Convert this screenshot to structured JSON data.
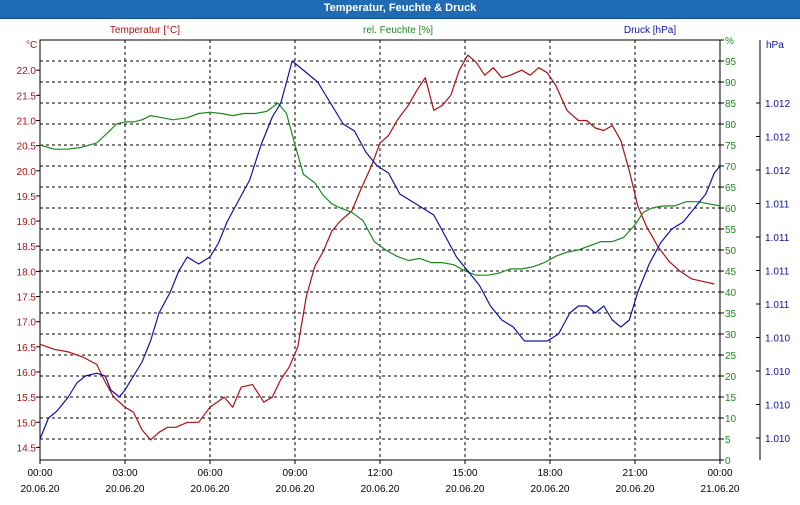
{
  "window": {
    "title": "Temperatur, Feuchte & Druck"
  },
  "colors": {
    "temperature": "#b01010",
    "humidity": "#1a8a1a",
    "pressure": "#1010a8",
    "grid": "#000000",
    "title_bar": "#1f6cb4"
  },
  "chart_data": {
    "type": "line",
    "title": "Temperatur, Feuchte & Druck",
    "grid": true,
    "x_axis": {
      "ticks": [
        {
          "time": "00:00",
          "date": "20.06.20"
        },
        {
          "time": "03:00",
          "date": "20.06.20"
        },
        {
          "time": "06:00",
          "date": "20.06.20"
        },
        {
          "time": "09:00",
          "date": "20.06.20"
        },
        {
          "time": "12:00",
          "date": "20.06.20"
        },
        {
          "time": "15:00",
          "date": "20.06.20"
        },
        {
          "time": "18:00",
          "date": "20.06.20"
        },
        {
          "time": "21:00",
          "date": "20.06.20"
        },
        {
          "time": "00:00",
          "date": "21.06.20"
        }
      ],
      "range_hours": [
        0,
        24
      ]
    },
    "axes": {
      "temperature": {
        "unit": "°C",
        "label": "Temperatur [°C]",
        "range": [
          14.25,
          22.6
        ],
        "ticks": [
          "14.5",
          "15.0",
          "15.5",
          "16.0",
          "16.5",
          "17.0",
          "17.5",
          "18.0",
          "18.5",
          "19.0",
          "19.5",
          "20.0",
          "20.5",
          "21.0",
          "21.5",
          "22.0"
        ]
      },
      "humidity": {
        "unit": "%",
        "label": "rel. Feuchte [%]",
        "range": [
          0,
          100
        ],
        "ticks": [
          "0",
          "5",
          "10",
          "15",
          "20",
          "25",
          "30",
          "35",
          "40",
          "45",
          "50",
          "55",
          "60",
          "65",
          "70",
          "75",
          "80",
          "85",
          "90",
          "95",
          "%"
        ]
      },
      "pressure": {
        "unit": "hPa",
        "label": "Druck [hPa]",
        "range": [
          1009.5,
          1012.5
        ],
        "ticks": [
          "1.010",
          "1.010",
          "1.010",
          "1.010",
          "1.011",
          "1.011",
          "1.011",
          "1.011",
          "1.012",
          "1.012",
          "1.012"
        ]
      }
    },
    "series": [
      {
        "name": "Temperatur [°C]",
        "axis": "temperature",
        "points": [
          [
            0,
            16.55
          ],
          [
            0.5,
            16.45
          ],
          [
            1,
            16.4
          ],
          [
            1.5,
            16.3
          ],
          [
            2,
            16.15
          ],
          [
            2.3,
            15.8
          ],
          [
            2.6,
            15.5
          ],
          [
            3,
            15.3
          ],
          [
            3.3,
            15.2
          ],
          [
            3.6,
            14.85
          ],
          [
            3.9,
            14.65
          ],
          [
            4.2,
            14.8
          ],
          [
            4.5,
            14.9
          ],
          [
            4.8,
            14.9
          ],
          [
            5.2,
            15.0
          ],
          [
            5.6,
            15.0
          ],
          [
            6,
            15.3
          ],
          [
            6.5,
            15.5
          ],
          [
            6.8,
            15.3
          ],
          [
            7.1,
            15.7
          ],
          [
            7.5,
            15.75
          ],
          [
            7.9,
            15.4
          ],
          [
            8.2,
            15.5
          ],
          [
            8.5,
            15.85
          ],
          [
            8.8,
            16.1
          ],
          [
            9.1,
            16.5
          ],
          [
            9.4,
            17.5
          ],
          [
            9.7,
            18.1
          ],
          [
            10,
            18.4
          ],
          [
            10.3,
            18.8
          ],
          [
            10.6,
            19.0
          ],
          [
            11,
            19.2
          ],
          [
            11.3,
            19.6
          ],
          [
            11.7,
            20.1
          ],
          [
            12,
            20.55
          ],
          [
            12.3,
            20.7
          ],
          [
            12.6,
            21.0
          ],
          [
            13,
            21.3
          ],
          [
            13.3,
            21.6
          ],
          [
            13.6,
            21.85
          ],
          [
            13.9,
            21.2
          ],
          [
            14.2,
            21.3
          ],
          [
            14.5,
            21.5
          ],
          [
            14.8,
            22.0
          ],
          [
            15.1,
            22.3
          ],
          [
            15.4,
            22.15
          ],
          [
            15.7,
            21.9
          ],
          [
            16,
            22.05
          ],
          [
            16.3,
            21.85
          ],
          [
            16.6,
            21.9
          ],
          [
            17,
            22.0
          ],
          [
            17.3,
            21.9
          ],
          [
            17.6,
            22.05
          ],
          [
            17.9,
            21.95
          ],
          [
            18.2,
            21.7
          ],
          [
            18.6,
            21.2
          ],
          [
            19,
            21.0
          ],
          [
            19.3,
            21.0
          ],
          [
            19.6,
            20.85
          ],
          [
            19.9,
            20.8
          ],
          [
            20.2,
            20.9
          ],
          [
            20.5,
            20.6
          ],
          [
            20.8,
            20.0
          ],
          [
            21.1,
            19.3
          ],
          [
            21.4,
            18.9
          ],
          [
            21.8,
            18.5
          ],
          [
            22.2,
            18.2
          ],
          [
            22.6,
            18.0
          ],
          [
            23,
            17.85
          ],
          [
            23.4,
            17.8
          ],
          [
            23.8,
            17.75
          ]
        ]
      },
      {
        "name": "rel. Feuchte [%]",
        "axis": "humidity",
        "points": [
          [
            0,
            75
          ],
          [
            0.5,
            74
          ],
          [
            1,
            74
          ],
          [
            1.5,
            74.5
          ],
          [
            2,
            75.5
          ],
          [
            2.4,
            78
          ],
          [
            2.7,
            80
          ],
          [
            3,
            80.5
          ],
          [
            3.3,
            80.5
          ],
          [
            3.6,
            81
          ],
          [
            3.9,
            82
          ],
          [
            4.3,
            81.5
          ],
          [
            4.7,
            81
          ],
          [
            5.2,
            81.5
          ],
          [
            5.6,
            82.5
          ],
          [
            6,
            82.8
          ],
          [
            6.4,
            82.5
          ],
          [
            6.8,
            82
          ],
          [
            7.2,
            82.5
          ],
          [
            7.6,
            82.5
          ],
          [
            8,
            83
          ],
          [
            8.4,
            85
          ],
          [
            8.7,
            82.5
          ],
          [
            9,
            75
          ],
          [
            9.3,
            68
          ],
          [
            9.7,
            66
          ],
          [
            10,
            63
          ],
          [
            10.3,
            61
          ],
          [
            10.6,
            60
          ],
          [
            11,
            59
          ],
          [
            11.4,
            57
          ],
          [
            11.8,
            52
          ],
          [
            12.2,
            50
          ],
          [
            12.6,
            48.5
          ],
          [
            13,
            47.5
          ],
          [
            13.4,
            48
          ],
          [
            13.8,
            47
          ],
          [
            14.2,
            47
          ],
          [
            14.6,
            46.5
          ],
          [
            15,
            45
          ],
          [
            15.4,
            44
          ],
          [
            15.8,
            44
          ],
          [
            16.2,
            44.5
          ],
          [
            16.6,
            45.5
          ],
          [
            17,
            45.5
          ],
          [
            17.4,
            46
          ],
          [
            17.8,
            47
          ],
          [
            18.2,
            48.5
          ],
          [
            18.6,
            49.5
          ],
          [
            19,
            50
          ],
          [
            19.4,
            51
          ],
          [
            19.8,
            52
          ],
          [
            20.2,
            52
          ],
          [
            20.6,
            53
          ],
          [
            21,
            56
          ],
          [
            21.3,
            59
          ],
          [
            21.6,
            60
          ],
          [
            22,
            60.5
          ],
          [
            22.4,
            60.5
          ],
          [
            22.8,
            61.5
          ],
          [
            23.2,
            61.5
          ],
          [
            23.6,
            61
          ],
          [
            24,
            60.5
          ]
        ]
      },
      {
        "name": "Druck [hPa]",
        "axis": "pressure",
        "points": [
          [
            0,
            1009.65
          ],
          [
            0.3,
            1009.8
          ],
          [
            0.6,
            1009.85
          ],
          [
            1,
            1009.95
          ],
          [
            1.3,
            1010.05
          ],
          [
            1.6,
            1010.1
          ],
          [
            2,
            1010.12
          ],
          [
            2.3,
            1010.1
          ],
          [
            2.5,
            1010.0
          ],
          [
            2.8,
            1009.95
          ],
          [
            3,
            1010.0
          ],
          [
            3.3,
            1010.1
          ],
          [
            3.6,
            1010.2
          ],
          [
            3.9,
            1010.35
          ],
          [
            4.2,
            1010.55
          ],
          [
            4.6,
            1010.7
          ],
          [
            4.9,
            1010.85
          ],
          [
            5.2,
            1010.95
          ],
          [
            5.6,
            1010.9
          ],
          [
            6,
            1010.95
          ],
          [
            6.3,
            1011.05
          ],
          [
            6.6,
            1011.2
          ],
          [
            7,
            1011.35
          ],
          [
            7.4,
            1011.5
          ],
          [
            7.8,
            1011.75
          ],
          [
            8.2,
            1011.95
          ],
          [
            8.5,
            1012.05
          ],
          [
            8.7,
            1012.2
          ],
          [
            8.9,
            1012.35
          ],
          [
            9.2,
            1012.3
          ],
          [
            9.5,
            1012.25
          ],
          [
            9.8,
            1012.2
          ],
          [
            10.1,
            1012.1
          ],
          [
            10.4,
            1012.0
          ],
          [
            10.7,
            1011.9
          ],
          [
            11.1,
            1011.85
          ],
          [
            11.5,
            1011.7
          ],
          [
            11.9,
            1011.6
          ],
          [
            12.3,
            1011.55
          ],
          [
            12.7,
            1011.4
          ],
          [
            13.1,
            1011.35
          ],
          [
            13.5,
            1011.3
          ],
          [
            13.9,
            1011.25
          ],
          [
            14.3,
            1011.1
          ],
          [
            14.7,
            1010.95
          ],
          [
            15.1,
            1010.85
          ],
          [
            15.5,
            1010.75
          ],
          [
            15.9,
            1010.6
          ],
          [
            16.3,
            1010.5
          ],
          [
            16.7,
            1010.45
          ],
          [
            17.1,
            1010.35
          ],
          [
            17.5,
            1010.35
          ],
          [
            17.9,
            1010.35
          ],
          [
            18.3,
            1010.4
          ],
          [
            18.7,
            1010.55
          ],
          [
            19,
            1010.6
          ],
          [
            19.3,
            1010.6
          ],
          [
            19.6,
            1010.55
          ],
          [
            19.9,
            1010.6
          ],
          [
            20.2,
            1010.5
          ],
          [
            20.5,
            1010.45
          ],
          [
            20.8,
            1010.5
          ],
          [
            21.1,
            1010.7
          ],
          [
            21.5,
            1010.9
          ],
          [
            21.9,
            1011.05
          ],
          [
            22.3,
            1011.15
          ],
          [
            22.7,
            1011.2
          ],
          [
            23.1,
            1011.3
          ],
          [
            23.5,
            1011.4
          ],
          [
            23.8,
            1011.55
          ],
          [
            24,
            1011.6
          ]
        ]
      }
    ]
  }
}
